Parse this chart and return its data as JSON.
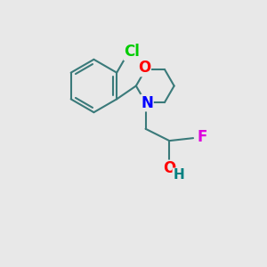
{
  "background_color": "#e8e8e8",
  "bond_color": "#3a7a7a",
  "bond_width": 1.5,
  "atom_colors": {
    "Cl": "#00cc00",
    "O": "#ff0000",
    "N": "#0000ff",
    "F": "#dd00dd",
    "OH_H": "#008080"
  },
  "figsize": [
    3.0,
    3.0
  ],
  "dpi": 100
}
